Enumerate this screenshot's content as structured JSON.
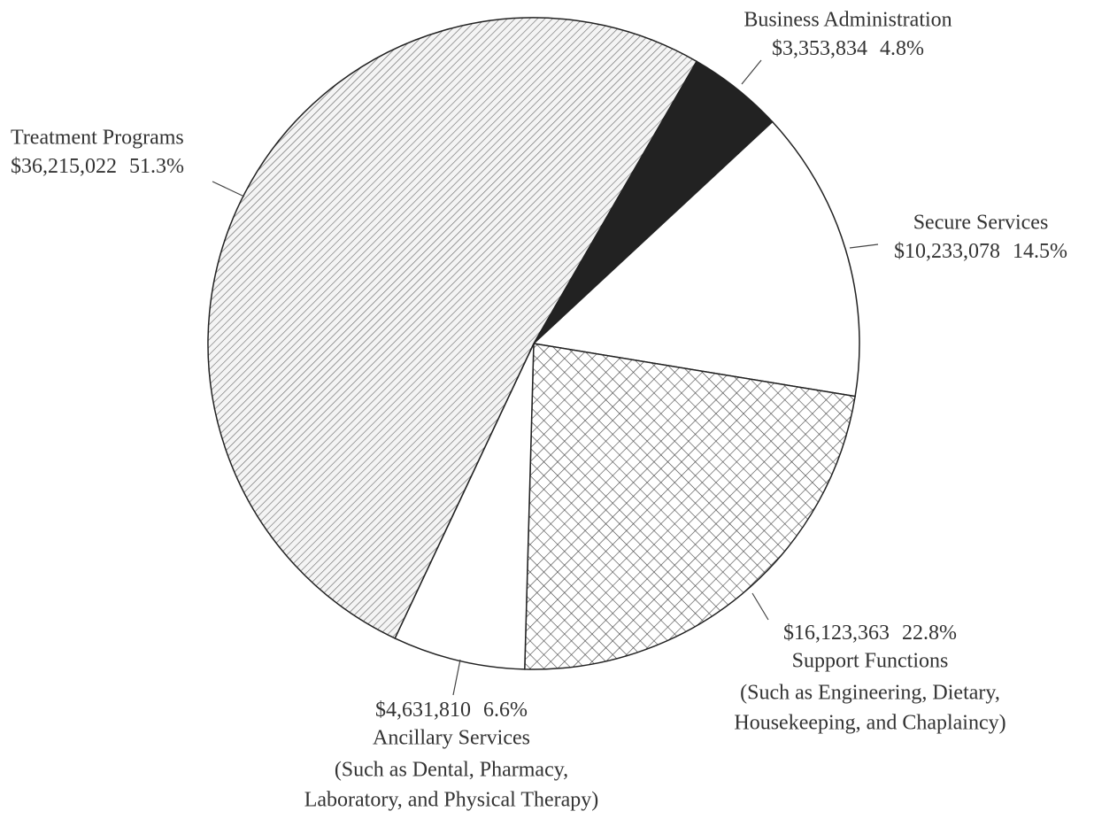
{
  "chart_data": {
    "type": "pie",
    "categories": [
      "Business Administration",
      "Secure Services",
      "Support Functions",
      "Ancillary Services",
      "Treatment Programs"
    ],
    "values": [
      3353834,
      10233078,
      16123363,
      4631810,
      36215022
    ],
    "value_labels": [
      "$3,353,834",
      "$10,233,078",
      "$16,123,363",
      "$4,631,810",
      "$36,215,022"
    ],
    "percents": [
      4.8,
      14.5,
      22.8,
      6.6,
      51.3
    ],
    "percent_labels": [
      "4.8%",
      "14.5%",
      "22.8%",
      "6.6%",
      "51.3%"
    ],
    "descriptions": [
      [],
      [],
      [
        "(Such as Engineering, Dietary,",
        "Housekeeping, and Chaplaincy)"
      ],
      [
        "(Such as Dental, Pharmacy,",
        "Laboratory, and Physical Therapy)"
      ],
      []
    ],
    "colors": [
      "#222222",
      "#ffffff",
      "#ffffff",
      "#ffffff",
      "#ffffff"
    ],
    "patterns": [
      "solid",
      "solid",
      "crosshatch",
      "solid",
      "hatch"
    ]
  }
}
